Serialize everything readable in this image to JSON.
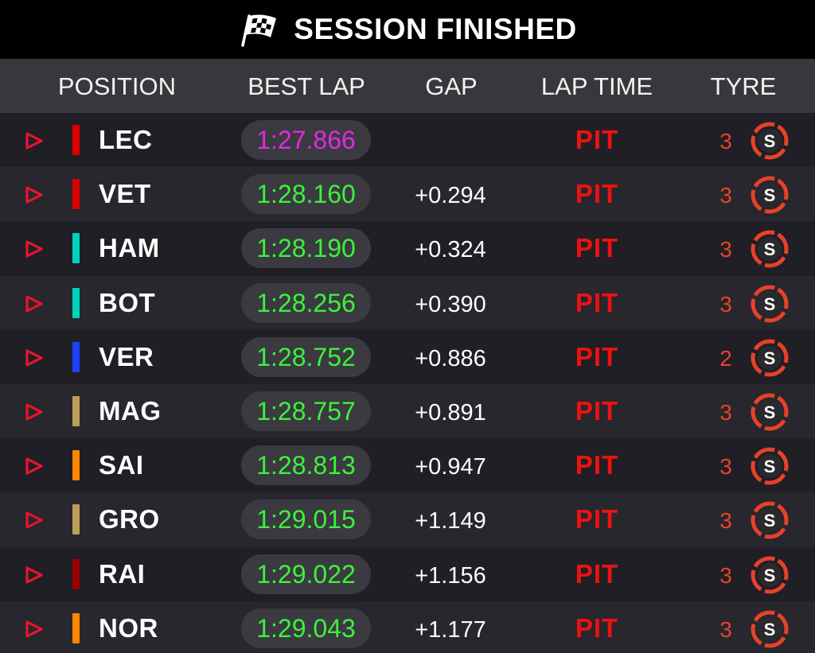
{
  "window": {
    "title": "SESSION FINISHED"
  },
  "icons": {
    "title": "chequered-flag-icon",
    "row_marker": "play-arrow-icon",
    "tyre": "soft-tyre-icon"
  },
  "colors": {
    "best_lap_normal": "#3cf23c",
    "best_lap_overall": "#e22ae2",
    "pit": "#ee1111",
    "soft_tyre": "#e8412a"
  },
  "columns": {
    "position": "POSITION",
    "best_lap": "BEST LAP",
    "gap": "GAP",
    "lap_time": "LAP TIME",
    "tyre": "TYRE"
  },
  "rows": [
    {
      "driver": "LEC",
      "team_color": "#dc0000",
      "best_lap": "1:27.866",
      "overall_best": true,
      "gap": "",
      "lap_time": "PIT",
      "tyre_age": "3",
      "tyre": "S"
    },
    {
      "driver": "VET",
      "team_color": "#dc0000",
      "best_lap": "1:28.160",
      "overall_best": false,
      "gap": "+0.294",
      "lap_time": "PIT",
      "tyre_age": "3",
      "tyre": "S"
    },
    {
      "driver": "HAM",
      "team_color": "#00d2be",
      "best_lap": "1:28.190",
      "overall_best": false,
      "gap": "+0.324",
      "lap_time": "PIT",
      "tyre_age": "3",
      "tyre": "S"
    },
    {
      "driver": "BOT",
      "team_color": "#00d2be",
      "best_lap": "1:28.256",
      "overall_best": false,
      "gap": "+0.390",
      "lap_time": "PIT",
      "tyre_age": "3",
      "tyre": "S"
    },
    {
      "driver": "VER",
      "team_color": "#1e41ff",
      "best_lap": "1:28.752",
      "overall_best": false,
      "gap": "+0.886",
      "lap_time": "PIT",
      "tyre_age": "2",
      "tyre": "S"
    },
    {
      "driver": "MAG",
      "team_color": "#bd9e57",
      "best_lap": "1:28.757",
      "overall_best": false,
      "gap": "+0.891",
      "lap_time": "PIT",
      "tyre_age": "3",
      "tyre": "S"
    },
    {
      "driver": "SAI",
      "team_color": "#ff8700",
      "best_lap": "1:28.813",
      "overall_best": false,
      "gap": "+0.947",
      "lap_time": "PIT",
      "tyre_age": "3",
      "tyre": "S"
    },
    {
      "driver": "GRO",
      "team_color": "#bd9e57",
      "best_lap": "1:29.015",
      "overall_best": false,
      "gap": "+1.149",
      "lap_time": "PIT",
      "tyre_age": "3",
      "tyre": "S"
    },
    {
      "driver": "RAI",
      "team_color": "#9b0000",
      "best_lap": "1:29.022",
      "overall_best": false,
      "gap": "+1.156",
      "lap_time": "PIT",
      "tyre_age": "3",
      "tyre": "S"
    },
    {
      "driver": "NOR",
      "team_color": "#ff8700",
      "best_lap": "1:29.043",
      "overall_best": false,
      "gap": "+1.177",
      "lap_time": "PIT",
      "tyre_age": "3",
      "tyre": "S"
    }
  ]
}
